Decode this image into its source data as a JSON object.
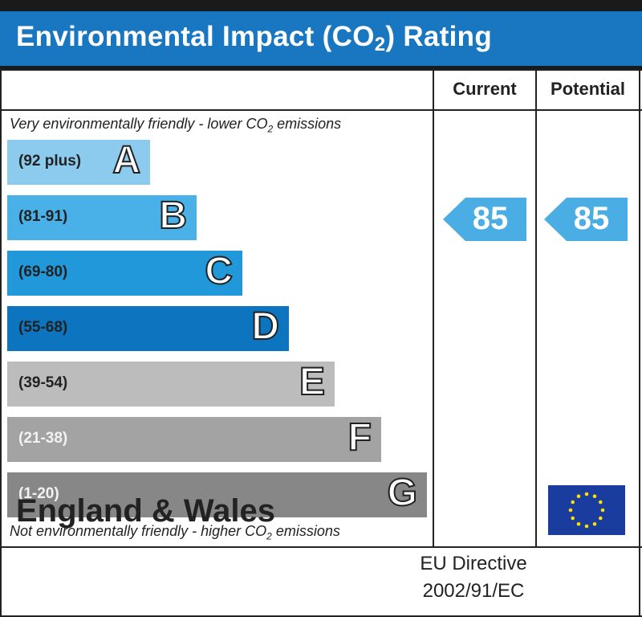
{
  "header": {
    "title_prefix": "Environmental Impact (CO",
    "title_sub": "2",
    "title_suffix": ") Rating"
  },
  "columns": {
    "current": "Current",
    "potential": "Potential"
  },
  "notes": {
    "top_prefix": "Very environmentally friendly - lower CO",
    "top_sub": "2",
    "top_suffix": " emissions",
    "bottom_prefix": "Not environmentally friendly - higher CO",
    "bottom_sub": "2",
    "bottom_suffix": " emissions"
  },
  "chart_data": {
    "type": "bar",
    "title": "Environmental Impact (CO2) Rating",
    "categories": [
      "A",
      "B",
      "C",
      "D",
      "E",
      "F",
      "G"
    ],
    "bands": [
      {
        "letter": "A",
        "range": "(92 plus)",
        "color": "#8ccbee",
        "light_text": false
      },
      {
        "letter": "B",
        "range": "(81-91)",
        "color": "#49b0e8",
        "light_text": false
      },
      {
        "letter": "C",
        "range": "(69-80)",
        "color": "#2098d9",
        "light_text": false
      },
      {
        "letter": "D",
        "range": "(55-68)",
        "color": "#0d74bf",
        "light_text": false
      },
      {
        "letter": "E",
        "range": "(39-54)",
        "color": "#bdbcbc",
        "light_text": false
      },
      {
        "letter": "F",
        "range": "(21-38)",
        "color": "#a3a3a3",
        "light_text": true
      },
      {
        "letter": "G",
        "range": "(1-20)",
        "color": "#878787",
        "light_text": true
      }
    ],
    "current": {
      "value": 85,
      "band": "B",
      "color": "#4aaee4"
    },
    "potential": {
      "value": 85,
      "band": "B",
      "color": "#4aaee4"
    }
  },
  "footer": {
    "region": "England & Wales",
    "directive_line1": "EU Directive",
    "directive_line2": "2002/91/EC",
    "flag_icon": "eu-flag-icon"
  }
}
